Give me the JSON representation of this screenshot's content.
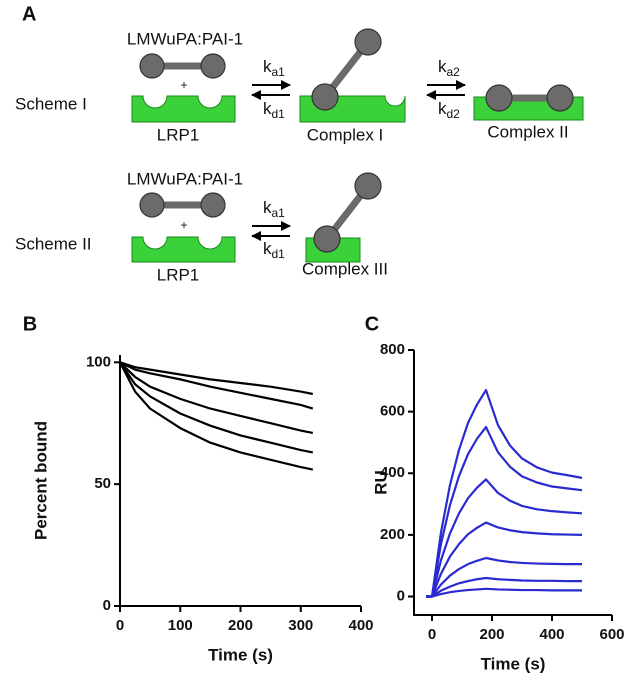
{
  "panel_a": {
    "label": "A",
    "schemes": [
      {
        "label": "Scheme I",
        "ligand": "LMWuPA:PAI-1",
        "plus": "+",
        "receptor": "LRP1",
        "steps": [
          {
            "forward": {
              "k": "k",
              "sub": "a1"
            },
            "reverse": {
              "k": "k",
              "sub": "d1"
            },
            "product": "Complex I"
          },
          {
            "forward": {
              "k": "k",
              "sub": "a2"
            },
            "reverse": {
              "k": "k",
              "sub": "d2"
            },
            "product": "Complex II"
          }
        ]
      },
      {
        "label": "Scheme II",
        "ligand": "LMWuPA:PAI-1",
        "plus": "+",
        "receptor": "LRP1",
        "steps": [
          {
            "forward": {
              "k": "k",
              "sub": "a1"
            },
            "reverse": {
              "k": "k",
              "sub": "d1"
            },
            "product": "Complex III"
          }
        ]
      }
    ]
  },
  "chart_data": [
    {
      "type": "line",
      "panel_label": "B",
      "x_label": "Time (s)",
      "y_label": "Percent bound",
      "x": [
        0,
        25,
        50,
        100,
        150,
        200,
        250,
        300,
        320
      ],
      "series": [
        {
          "color": "#000000",
          "values": [
            100,
            98,
            97,
            95,
            93,
            91.5,
            90,
            88,
            87
          ]
        },
        {
          "color": "#000000",
          "values": [
            100,
            97,
            95.5,
            93,
            90,
            87.5,
            85,
            82.5,
            81
          ]
        },
        {
          "color": "#000000",
          "values": [
            100,
            94,
            90,
            85,
            81,
            78,
            75,
            72,
            71
          ]
        },
        {
          "color": "#000000",
          "values": [
            100,
            91,
            86,
            79,
            74,
            70,
            67,
            64,
            63
          ]
        },
        {
          "color": "#000000",
          "values": [
            100,
            88,
            81,
            73,
            67,
            63,
            60,
            57,
            56
          ]
        }
      ],
      "xlim": [
        0,
        400
      ],
      "xticks": [
        0,
        100,
        200,
        300,
        400
      ],
      "ylim": [
        0,
        103
      ],
      "yticks": [
        0,
        50,
        100
      ]
    },
    {
      "type": "line",
      "panel_label": "C",
      "x_label": "Time (s)",
      "y_label": "RU",
      "x": [
        -20,
        0,
        30,
        60,
        90,
        120,
        150,
        180,
        220,
        260,
        300,
        350,
        400,
        450,
        500
      ],
      "series": [
        {
          "color": "#2a2ad0",
          "values": [
            0,
            0,
            208,
            362,
            476,
            563,
            623,
            670,
            556,
            490,
            448,
            419,
            402,
            394,
            385
          ]
        },
        {
          "color": "#2a2ad0",
          "values": [
            0,
            0,
            171,
            297,
            391,
            462,
            512,
            550,
            468,
            421,
            390,
            370,
            357,
            351,
            345
          ]
        },
        {
          "color": "#2a2ad0",
          "values": [
            0,
            0,
            118,
            205,
            270,
            319,
            353,
            380,
            336,
            311,
            294,
            283,
            277,
            273,
            270
          ]
        },
        {
          "color": "#2a2ad0",
          "values": [
            0,
            0,
            74,
            130,
            170,
            202,
            223,
            240,
            224,
            215,
            209,
            205,
            202,
            201,
            200
          ]
        },
        {
          "color": "#2a2ad0",
          "values": [
            0,
            0,
            39,
            68,
            89,
            105,
            116,
            125,
            117,
            112,
            109,
            107,
            106,
            105,
            105
          ]
        },
        {
          "color": "#2a2ad0",
          "values": [
            0,
            0,
            19,
            32,
            43,
            50,
            56,
            60,
            56,
            54,
            52,
            51,
            51,
            50,
            50
          ]
        },
        {
          "color": "#2a2ad0",
          "values": [
            0,
            0,
            8,
            14,
            18,
            21,
            23,
            25,
            23,
            22,
            21,
            21,
            20,
            20,
            20
          ]
        }
      ],
      "xlim": [
        -60,
        600
      ],
      "xticks": [
        0,
        200,
        400,
        600
      ],
      "ylim": [
        -60,
        800
      ],
      "yticks": [
        0,
        200,
        400,
        600,
        800
      ]
    }
  ]
}
